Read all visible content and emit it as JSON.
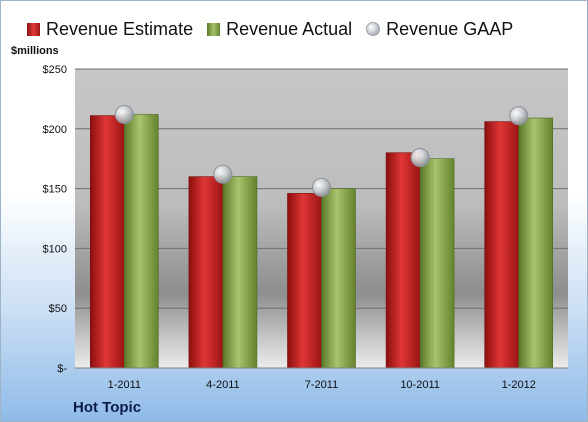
{
  "legend": {
    "estimate": "Revenue Estimate",
    "actual": "Revenue Actual",
    "gaap": "Revenue GAAP"
  },
  "y_unit_label": "$millions",
  "company_label": "Hot Topic",
  "colors": {
    "estimate": "#c41e1e",
    "actual": "#8cad4f",
    "gaap": "#c8ccd1"
  },
  "chart_data": {
    "type": "bar",
    "categories": [
      "1-2011",
      "4-2011",
      "7-2011",
      "10-2011",
      "1-2012"
    ],
    "series": [
      {
        "name": "Revenue Estimate",
        "values": [
          211,
          160,
          146,
          180,
          206
        ]
      },
      {
        "name": "Revenue Actual",
        "values": [
          212,
          160,
          150,
          175,
          209
        ]
      },
      {
        "name": "Revenue GAAP",
        "marker": "circle",
        "values": [
          212,
          162,
          151,
          176,
          211
        ]
      }
    ],
    "ylim": [
      0,
      250
    ],
    "y_ticks": [
      0,
      50,
      100,
      150,
      200,
      250
    ],
    "y_tick_labels": [
      "$-",
      "$50",
      "$100",
      "$150",
      "$200",
      "$250"
    ],
    "grid": true,
    "legend_position": "top",
    "ylabel": "$millions"
  }
}
